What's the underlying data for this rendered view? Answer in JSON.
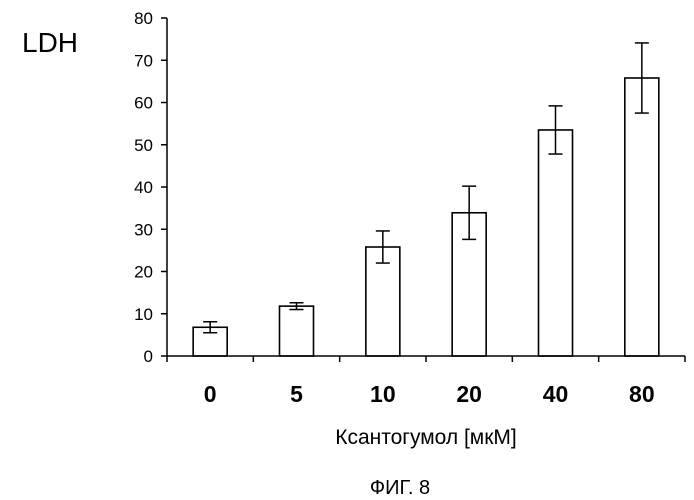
{
  "chart_data": {
    "type": "bar",
    "ylabel": "LDH",
    "xlabel": "Ксантогумол [мкМ]",
    "categories": [
      "0",
      "5",
      "10",
      "20",
      "40",
      "80"
    ],
    "values": [
      6.8,
      11.8,
      25.8,
      33.9,
      53.5,
      65.8
    ],
    "error": [
      1.3,
      0.8,
      3.8,
      6.3,
      5.7,
      8.3
    ],
    "ylim": [
      0,
      80
    ],
    "yticks": [
      0,
      10,
      20,
      30,
      40,
      50,
      60,
      70,
      80
    ],
    "grid": false,
    "legend": "none",
    "bar_fill": "#ffffff",
    "bar_stroke": "#000000"
  },
  "caption": "ФИГ. 8"
}
